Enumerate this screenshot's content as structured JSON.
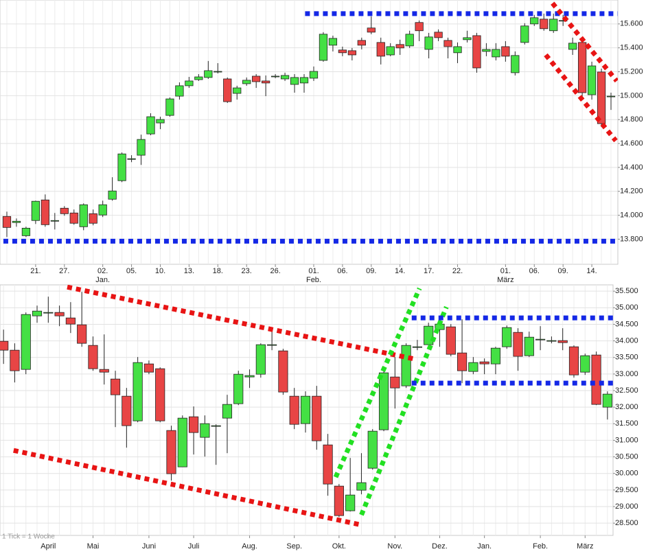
{
  "chart_data": [
    {
      "type": "candlestick",
      "categories": [
        null,
        null,
        null,
        "21.",
        null,
        null,
        "27.",
        null,
        null,
        null,
        "02.",
        null,
        null,
        "05.",
        null,
        null,
        "10.",
        null,
        null,
        "13.",
        null,
        null,
        "18.",
        null,
        null,
        "23.",
        null,
        null,
        "26.",
        null,
        null,
        null,
        "01.",
        null,
        null,
        "06.",
        null,
        null,
        "09.",
        null,
        null,
        "14.",
        null,
        null,
        "17.",
        null,
        null,
        "22.",
        null,
        null,
        null,
        null,
        "01.",
        null,
        null,
        "06.",
        null,
        null,
        "09.",
        null,
        null,
        "14.",
        null,
        null
      ],
      "category_months": [
        null,
        null,
        null,
        null,
        null,
        null,
        null,
        null,
        null,
        null,
        "Jan.",
        null,
        null,
        null,
        null,
        null,
        null,
        null,
        null,
        null,
        null,
        null,
        null,
        null,
        null,
        null,
        null,
        null,
        null,
        null,
        null,
        null,
        "Feb.",
        null,
        null,
        null,
        null,
        null,
        null,
        null,
        null,
        null,
        null,
        null,
        null,
        null,
        null,
        null,
        null,
        null,
        null,
        null,
        "März",
        null,
        null,
        null,
        null,
        null,
        null,
        null,
        null,
        null,
        null,
        null
      ],
      "open": [
        13990,
        13939,
        13829,
        13956,
        14128,
        13950,
        14059,
        14019,
        13904,
        14013,
        14002,
        14134,
        14289,
        14467,
        14502,
        14680,
        14772,
        14835,
        14996,
        15083,
        15134,
        15152,
        15200,
        15140,
        15019,
        15100,
        15163,
        15123,
        15160,
        15140,
        15094,
        15106,
        15146,
        15295,
        15422,
        15382,
        15376,
        15462,
        15566,
        15445,
        15341,
        15428,
        15416,
        15612,
        15387,
        15531,
        15462,
        15359,
        15468,
        15502,
        15370,
        15324,
        15410,
        15192,
        15445,
        15600,
        15640,
        15543,
        15625,
        15387,
        15445,
        15008,
        15198,
        14990
      ],
      "high": [
        14030,
        13973,
        13904,
        14122,
        14174,
        14019,
        14076,
        14048,
        14099,
        14048,
        14122,
        14318,
        14525,
        14502,
        14674,
        14853,
        14824,
        14985,
        15111,
        15157,
        15180,
        15290,
        15272,
        15152,
        15083,
        15152,
        15180,
        15169,
        15180,
        15192,
        15180,
        15180,
        15244,
        15531,
        15502,
        15410,
        15399,
        15485,
        15663,
        15485,
        15439,
        15468,
        15543,
        15629,
        15525,
        15554,
        15485,
        15445,
        15543,
        15525,
        15439,
        15439,
        15456,
        15370,
        15606,
        15675,
        15686,
        15686,
        15675,
        15485,
        15456,
        15284,
        15226,
        15025
      ],
      "low": [
        13818,
        13904,
        13818,
        13927,
        13904,
        13881,
        13996,
        13921,
        13875,
        13916,
        13985,
        14122,
        14277,
        14444,
        14421,
        14669,
        14720,
        14824,
        14967,
        15065,
        15123,
        15140,
        15186,
        14939,
        14967,
        15083,
        15065,
        14996,
        15146,
        15123,
        15025,
        15025,
        15123,
        15284,
        15370,
        15330,
        15295,
        15387,
        15514,
        15261,
        15330,
        15341,
        15399,
        15456,
        15312,
        15456,
        15312,
        15272,
        15445,
        15192,
        15330,
        15295,
        15284,
        15169,
        15428,
        15583,
        15543,
        15525,
        15583,
        15341,
        14996,
        14967,
        14738,
        14881
      ],
      "close": [
        13898,
        13950,
        13892,
        14117,
        13921,
        13956,
        14013,
        13933,
        14088,
        13933,
        14088,
        14203,
        14513,
        14473,
        14634,
        14824,
        14801,
        14973,
        15083,
        15123,
        15157,
        15209,
        15203,
        14950,
        15065,
        15129,
        15117,
        15106,
        15163,
        15169,
        15152,
        15152,
        15203,
        15514,
        15479,
        15359,
        15341,
        15422,
        15531,
        15330,
        15410,
        15399,
        15514,
        15543,
        15491,
        15485,
        15410,
        15410,
        15485,
        15232,
        15387,
        15387,
        15330,
        15336,
        15583,
        15652,
        15560,
        15640,
        15629,
        15439,
        15025,
        15249,
        14766,
        14996
      ],
      "up_color": "#44e044",
      "down_color": "#e84545",
      "ylim": [
        13590,
        15800
      ],
      "yticks": [
        {
          "value": 13800,
          "label": "13.800"
        },
        {
          "value": 14000,
          "label": "14.000"
        },
        {
          "value": 14200,
          "label": "14.200"
        },
        {
          "value": 14400,
          "label": "14.400"
        },
        {
          "value": 14600,
          "label": "14.600"
        },
        {
          "value": 14800,
          "label": "14.800"
        },
        {
          "value": 15000,
          "label": "15.000"
        },
        {
          "value": 15200,
          "label": "15.200"
        },
        {
          "value": 15400,
          "label": "15.400"
        },
        {
          "value": 15600,
          "label": "15.600"
        }
      ],
      "grid": true,
      "trendlines": [
        {
          "color": "#1428e6",
          "x": [
            31.1,
            63.7
          ],
          "y": [
            15686,
            15686
          ]
        },
        {
          "color": "#1428e6",
          "x": [
            -0.36,
            63.7
          ],
          "y": [
            13783,
            13783
          ]
        },
        {
          "color": "#e81414",
          "x": [
            56.9,
            63.6
          ],
          "y": [
            15773,
            15123
          ]
        },
        {
          "color": "#e81414",
          "x": [
            56.2,
            63.5
          ],
          "y": [
            15341,
            14623
          ]
        }
      ]
    },
    {
      "type": "candlestick",
      "categories": [
        null,
        null,
        null,
        null,
        "April",
        null,
        null,
        null,
        "Mai",
        null,
        null,
        null,
        null,
        "Juni",
        null,
        null,
        null,
        "Juli",
        null,
        null,
        null,
        null,
        "Aug.",
        null,
        null,
        null,
        "Sep.",
        null,
        null,
        null,
        "Okt.",
        null,
        null,
        null,
        null,
        "Nov.",
        null,
        null,
        null,
        "Dez.",
        null,
        null,
        null,
        "Jan.",
        null,
        null,
        null,
        null,
        "Feb.",
        null,
        null,
        null,
        "März",
        null,
        null
      ],
      "open": [
        33988,
        33719,
        33139,
        34754,
        34850,
        34858,
        34692,
        34485,
        33864,
        33139,
        32849,
        32331,
        31586,
        33305,
        33160,
        31296,
        30198,
        31710,
        31089,
        31430,
        31669,
        32104,
        32911,
        32994,
        33880,
        33698,
        32331,
        31503,
        32331,
        30861,
        29618,
        28873,
        29494,
        30157,
        31317,
        32911,
        32642,
        33815,
        33885,
        34340,
        34423,
        33636,
        33077,
        33367,
        33305,
        33822,
        34257,
        33553,
        34045,
        34005,
        34009,
        33822,
        33056,
        33574,
        32000
      ],
      "high": [
        34340,
        33926,
        34858,
        35065,
        35334,
        35065,
        35169,
        35479,
        34133,
        34195,
        33098,
        32580,
        33512,
        33408,
        33201,
        31441,
        31751,
        32021,
        31751,
        31482,
        32373,
        33098,
        33139,
        33926,
        34340,
        33760,
        32580,
        32476,
        32642,
        31192,
        29680,
        30467,
        30612,
        31337,
        33098,
        33512,
        33926,
        34030,
        34547,
        34754,
        34506,
        34651,
        33512,
        33470,
        33822,
        34464,
        34382,
        34278,
        34444,
        34133,
        34382,
        33864,
        33615,
        33677,
        32476
      ],
      "low": [
        33305,
        32746,
        32994,
        34547,
        34547,
        34444,
        34237,
        33822,
        33098,
        32683,
        31399,
        30778,
        31544,
        32994,
        31544,
        29784,
        30198,
        30571,
        30509,
        30260,
        30612,
        32062,
        32580,
        32891,
        33719,
        32373,
        31337,
        31234,
        30716,
        29328,
        28686,
        28852,
        29370,
        30115,
        31275,
        31959,
        32580,
        33719,
        33822,
        33822,
        33533,
        32725,
        32994,
        32994,
        32994,
        33760,
        33098,
        33512,
        33719,
        33926,
        33719,
        32891,
        32973,
        32062,
        31627
      ],
      "close": [
        33719,
        33098,
        34796,
        34899,
        34858,
        34754,
        34506,
        33926,
        33160,
        33056,
        32373,
        31441,
        33346,
        33056,
        31586,
        29991,
        31669,
        31234,
        31503,
        31441,
        32083,
        32994,
        32953,
        33885,
        33885,
        32456,
        31482,
        32331,
        30985,
        29680,
        28728,
        29349,
        29722,
        31275,
        33036,
        32580,
        33864,
        33822,
        34444,
        34506,
        33595,
        33098,
        33346,
        33305,
        33781,
        34402,
        33533,
        34112,
        34050,
        34009,
        33947,
        32973,
        33553,
        32083,
        32394
      ],
      "up_color": "#44e044",
      "down_color": "#e84545",
      "ylim": [
        28130,
        35690
      ],
      "yticks": [
        {
          "value": 28500,
          "label": "28.500"
        },
        {
          "value": 29000,
          "label": "29.000"
        },
        {
          "value": 29500,
          "label": "29.500"
        },
        {
          "value": 30000,
          "label": "30.000"
        },
        {
          "value": 30500,
          "label": "30.500"
        },
        {
          "value": 31000,
          "label": "31.000"
        },
        {
          "value": 31500,
          "label": "31.500"
        },
        {
          "value": 32000,
          "label": "32.000"
        },
        {
          "value": 32500,
          "label": "32.500"
        },
        {
          "value": 33000,
          "label": "33.000"
        },
        {
          "value": 33500,
          "label": "33.500"
        },
        {
          "value": 34000,
          "label": "34.000"
        },
        {
          "value": 34500,
          "label": "34.500"
        },
        {
          "value": 35000,
          "label": "35.000"
        },
        {
          "value": 35500,
          "label": "35.500"
        }
      ],
      "grid": true,
      "note": "1 Tick = 1 Woche",
      "trendlines": [
        {
          "color": "#e81414",
          "x": [
            5.7,
            36.8
          ],
          "y": [
            35624,
            33450
          ]
        },
        {
          "color": "#e81414",
          "x": [
            0.9,
            32.1
          ],
          "y": [
            30695,
            28438
          ]
        },
        {
          "color": "#22e022",
          "x": [
            29.7,
            37.2
          ],
          "y": [
            29888,
            35583
          ]
        },
        {
          "color": "#22e022",
          "x": [
            32.0,
            39.6
          ],
          "y": [
            28749,
            35024
          ]
        },
        {
          "color": "#1428e6",
          "x": [
            36.5,
            54.5
          ],
          "y": [
            34692,
            34692
          ]
        },
        {
          "color": "#1428e6",
          "x": [
            36.5,
            54.5
          ],
          "y": [
            32725,
            32725
          ]
        }
      ]
    }
  ]
}
